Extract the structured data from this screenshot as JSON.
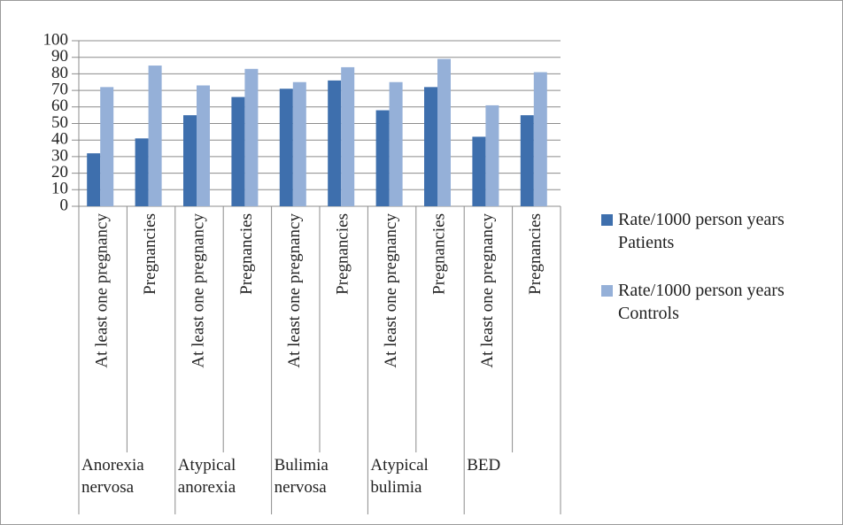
{
  "chart_data": {
    "type": "bar",
    "categories": [
      "At least one pregnancy",
      "Pregnancies",
      "At least one pregnancy",
      "Pregnancies",
      "At least one pregnancy",
      "Pregnancies",
      "At least one pregnancy",
      "Pregnancies",
      "At least one pregnancy",
      "Pregnancies"
    ],
    "groups": [
      "Anorexia nervosa",
      "Atypical anorexia",
      "Bulimia nervosa",
      "Atypical bulimia",
      "BED"
    ],
    "series": [
      {
        "name": "Rate/1000 person years Patients",
        "color": "#3e6fad",
        "values": [
          32,
          41,
          55,
          66,
          71,
          76,
          58,
          72,
          42,
          55
        ]
      },
      {
        "name": "Rate/1000 person years Controls",
        "color": "#95b0d8",
        "values": [
          72,
          85,
          73,
          83,
          75,
          84,
          75,
          89,
          61,
          81
        ]
      }
    ],
    "ylim": [
      0,
      100
    ],
    "yticks": [
      0,
      10,
      20,
      30,
      40,
      50,
      60,
      70,
      80,
      90,
      100
    ],
    "grid": true,
    "legend": "right"
  }
}
